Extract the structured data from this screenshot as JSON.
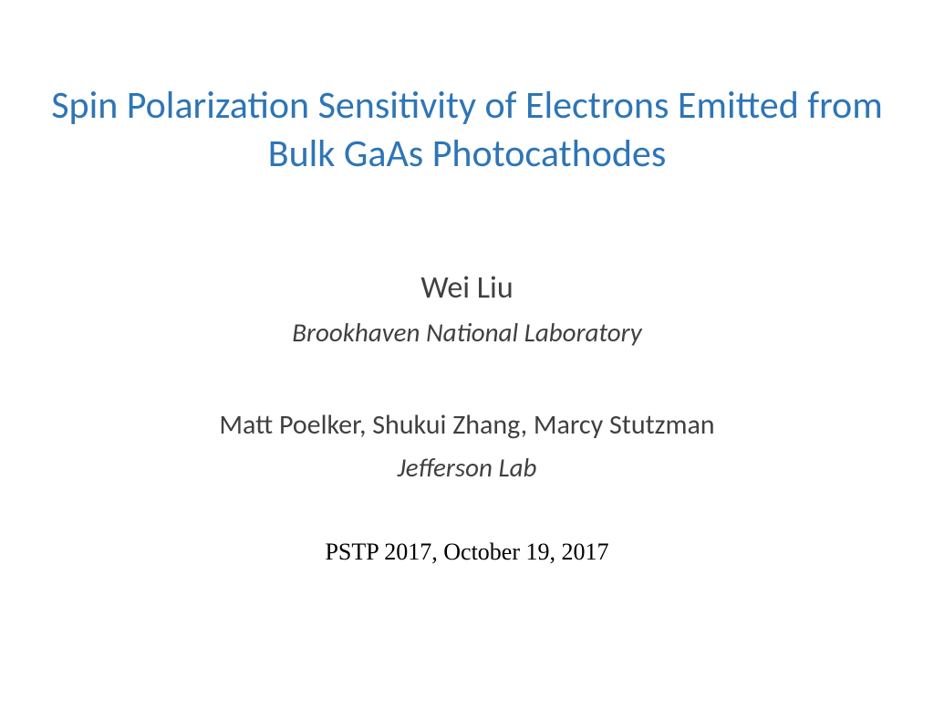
{
  "slide": {
    "title": "Spin Polarization Sensitivity of Electrons Emitted from Bulk GaAs Photocathodes",
    "presenter": "Wei Liu",
    "affiliation1": "Brookhaven National Laboratory",
    "coauthors": "Matt Poelker, Shukui Zhang, Marcy Stutzman",
    "affiliation2": "Jefferson Lab",
    "conference": "PSTP 2017, October 19, 2017"
  },
  "styles": {
    "background_color": "#ffffff",
    "title_color": "#2e75b6",
    "body_text_color": "#404040",
    "conference_text_color": "#000000",
    "title_fontsize": 42,
    "presenter_fontsize": 34,
    "affiliation_fontsize": 29,
    "coauthors_fontsize": 30,
    "conference_fontsize": 26,
    "title_font": "Calibri",
    "conference_font": "Times New Roman"
  }
}
